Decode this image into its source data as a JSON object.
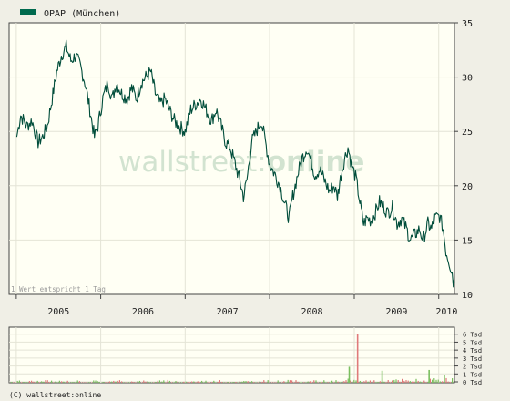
{
  "colors": {
    "line": "#004d3a",
    "legend_swatch": "#006a4e",
    "bg_plot": "#fffff4",
    "bg_page": "#f0efe6",
    "vol_up": "#7bbf5f",
    "vol_down": "#e07a7a",
    "watermark": "#d2e3d0"
  },
  "legend": {
    "label": "OPAP (München)"
  },
  "watermark": {
    "text_part1": "wallstreet:",
    "text_part2": "online"
  },
  "note": "1 Wert entspricht 1 Tag",
  "copyright": "(C) wallstreet:online",
  "chart_data": [
    {
      "type": "line",
      "series": [
        {
          "name": "OPAP (München)",
          "points": [
            [
              "2005-01-03",
              24.5
            ],
            [
              "2005-01-20",
              26.5
            ],
            [
              "2005-02-15",
              25.5
            ],
            [
              "2005-03-10",
              26.0
            ],
            [
              "2005-04-05",
              24.0
            ],
            [
              "2005-04-25",
              24.5
            ],
            [
              "2005-05-15",
              25.5
            ],
            [
              "2005-06-05",
              28.0
            ],
            [
              "2005-06-25",
              30.5
            ],
            [
              "2005-07-15",
              32.0
            ],
            [
              "2005-08-05",
              32.8
            ],
            [
              "2005-08-25",
              31.5
            ],
            [
              "2005-09-15",
              32.0
            ],
            [
              "2005-10-05",
              31.0
            ],
            [
              "2005-10-25",
              29.5
            ],
            [
              "2005-11-15",
              27.0
            ],
            [
              "2005-12-05",
              24.5
            ],
            [
              "2005-12-20",
              25.5
            ],
            [
              "2006-01-10",
              28.0
            ],
            [
              "2006-02-01",
              29.5
            ],
            [
              "2006-02-20",
              28.0
            ],
            [
              "2006-03-10",
              29.5
            ],
            [
              "2006-04-01",
              28.5
            ],
            [
              "2006-04-25",
              28.0
            ],
            [
              "2006-05-15",
              29.0
            ],
            [
              "2006-06-05",
              28.0
            ],
            [
              "2006-06-25",
              29.5
            ],
            [
              "2006-07-15",
              30.0
            ],
            [
              "2006-08-05",
              30.5
            ],
            [
              "2006-08-25",
              28.5
            ],
            [
              "2006-09-15",
              27.5
            ],
            [
              "2006-10-05",
              28.0
            ],
            [
              "2006-10-25",
              27.0
            ],
            [
              "2006-11-15",
              26.0
            ],
            [
              "2006-12-05",
              25.5
            ],
            [
              "2007-01-01",
              25.0
            ],
            [
              "2007-01-25",
              27.0
            ],
            [
              "2007-02-15",
              27.5
            ],
            [
              "2007-03-10",
              28.0
            ],
            [
              "2007-04-01",
              27.0
            ],
            [
              "2007-04-25",
              26.0
            ],
            [
              "2007-05-15",
              27.0
            ],
            [
              "2007-06-05",
              25.5
            ],
            [
              "2007-06-25",
              24.0
            ],
            [
              "2007-07-15",
              23.5
            ],
            [
              "2007-08-05",
              22.0
            ],
            [
              "2007-08-25",
              20.5
            ],
            [
              "2007-09-10",
              19.0
            ],
            [
              "2007-09-25",
              20.5
            ],
            [
              "2007-10-15",
              24.0
            ],
            [
              "2007-11-05",
              25.0
            ],
            [
              "2007-11-25",
              26.0
            ],
            [
              "2007-12-10",
              24.5
            ],
            [
              "2008-01-01",
              22.0
            ],
            [
              "2008-01-25",
              21.0
            ],
            [
              "2008-02-15",
              20.0
            ],
            [
              "2008-03-05",
              18.5
            ],
            [
              "2008-03-25",
              17.0
            ],
            [
              "2008-04-10",
              19.0
            ],
            [
              "2008-05-01",
              21.0
            ],
            [
              "2008-05-20",
              22.5
            ],
            [
              "2008-06-10",
              23.5
            ],
            [
              "2008-06-25",
              22.5
            ],
            [
              "2008-07-15",
              21.0
            ],
            [
              "2008-08-05",
              21.5
            ],
            [
              "2008-08-25",
              20.5
            ],
            [
              "2008-09-15",
              19.5
            ],
            [
              "2008-10-05",
              20.0
            ],
            [
              "2008-10-20",
              19.0
            ],
            [
              "2008-11-05",
              21.0
            ],
            [
              "2008-11-20",
              22.5
            ],
            [
              "2008-12-05",
              23.5
            ],
            [
              "2008-12-20",
              22.0
            ],
            [
              "2009-01-10",
              20.5
            ],
            [
              "2009-01-25",
              18.5
            ],
            [
              "2009-02-10",
              16.5
            ],
            [
              "2009-02-25",
              17.0
            ],
            [
              "2009-03-15",
              16.8
            ],
            [
              "2009-04-01",
              17.5
            ],
            [
              "2009-04-20",
              18.5
            ],
            [
              "2009-05-10",
              18.0
            ],
            [
              "2009-05-25",
              17.5
            ],
            [
              "2009-06-15",
              18.0
            ],
            [
              "2009-07-05",
              16.5
            ],
            [
              "2009-07-25",
              17.0
            ],
            [
              "2009-08-15",
              16.0
            ],
            [
              "2009-09-01",
              15.0
            ],
            [
              "2009-09-20",
              15.5
            ],
            [
              "2009-10-10",
              16.0
            ],
            [
              "2009-10-25",
              15.0
            ],
            [
              "2009-11-15",
              16.5
            ],
            [
              "2009-12-01",
              16.0
            ],
            [
              "2009-12-15",
              17.0
            ],
            [
              "2010-01-05",
              17.2
            ],
            [
              "2010-01-20",
              16.0
            ],
            [
              "2010-02-01",
              14.0
            ],
            [
              "2010-02-15",
              13.0
            ],
            [
              "2010-02-28",
              12.0
            ],
            [
              "2010-03-05",
              11.2
            ],
            [
              "2010-03-10",
              11.0
            ]
          ]
        }
      ],
      "x_tick_labels": [
        "2005",
        "2006",
        "2007",
        "2008",
        "2009",
        "2010"
      ],
      "y_ticks": [
        10,
        15,
        20,
        25,
        30,
        35
      ],
      "ylim": [
        10,
        35
      ],
      "grid": true,
      "legend_position": "top-left"
    },
    {
      "type": "bar",
      "volume_max": 6.7,
      "ylim": [
        0,
        7
      ],
      "y_ticks": [
        0,
        1,
        2,
        3,
        4,
        5,
        6
      ],
      "y_tick_labels": [
        "0 Tsd",
        "1 Tsd",
        "2 Tsd",
        "3 Tsd",
        "4 Tsd",
        "5 Tsd",
        "6 Tsd"
      ],
      "spikes": [
        {
          "date": "2009-01-15",
          "value": 6.0,
          "direction": "down"
        },
        {
          "date": "2008-12-10",
          "value": 1.9,
          "direction": "up"
        },
        {
          "date": "2009-05-01",
          "value": 1.4,
          "direction": "up"
        },
        {
          "date": "2009-11-20",
          "value": 1.5,
          "direction": "up"
        },
        {
          "date": "2010-01-25",
          "value": 0.9,
          "direction": "up"
        }
      ]
    }
  ]
}
